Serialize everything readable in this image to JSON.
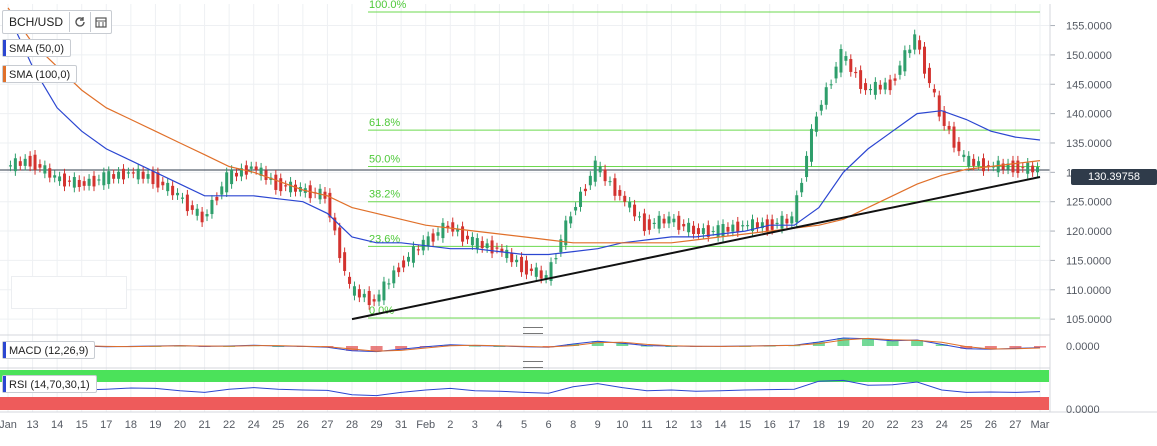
{
  "symbol": {
    "label": "BCH/USD"
  },
  "legends": {
    "sma50": {
      "label": "SMA (50,0)",
      "color": "#2b46d1"
    },
    "sma100": {
      "label": "SMA (100,0)",
      "color": "#e0702a"
    },
    "macd": {
      "label": "MACD (12,26,9)",
      "color": "#2b46d1"
    },
    "rsi": {
      "label": "RSI (14,70,30,1)",
      "color": "#2b46d1"
    }
  },
  "price_tag": {
    "value": "130.39758"
  },
  "fib_labels": {
    "f0": "0.0%",
    "f236": "23.6%",
    "f382": "38.2%",
    "f50": "50.0%",
    "f618": "61.8%",
    "f100": "100.0%"
  },
  "macd_label": "0.0000",
  "rsi_label": "0.0000",
  "x_ticks": [
    "Jan",
    "13",
    "14",
    "15",
    "17",
    "18",
    "19",
    "20",
    "21",
    "22",
    "24",
    "25",
    "26",
    "27",
    "28",
    "29",
    "31",
    "Feb",
    "2",
    "3",
    "4",
    "5",
    "6",
    "8",
    "9",
    "10",
    "11",
    "12",
    "13",
    "14",
    "15",
    "16",
    "17",
    "18",
    "19",
    "20",
    "22",
    "23",
    "24",
    "25",
    "26",
    "27",
    "Mar"
  ],
  "y_ticks": [
    "155.0000",
    "150.0000",
    "145.0000",
    "140.0000",
    "135.0000",
    "130.0000",
    "125.0000",
    "120.0000",
    "115.0000",
    "110.0000",
    "105.0000"
  ],
  "chart_data": {
    "type": "line",
    "title": "BCH/USD",
    "ylim": [
      104,
      158.5
    ],
    "grid": true,
    "x": [
      "Jan",
      "13",
      "14",
      "15",
      "17",
      "18",
      "19",
      "20",
      "21",
      "22",
      "24",
      "25",
      "26",
      "27",
      "28",
      "29",
      "31",
      "Feb",
      "2",
      "3",
      "4",
      "5",
      "6",
      "8",
      "9",
      "10",
      "11",
      "12",
      "13",
      "14",
      "15",
      "16",
      "17",
      "18",
      "19",
      "20",
      "22",
      "23",
      "24",
      "25",
      "26",
      "27",
      "Mar"
    ],
    "series": [
      {
        "name": "BCH/USD",
        "values": [
          131,
          132,
          129,
          128,
          129,
          130,
          129,
          126,
          122,
          129,
          131,
          128,
          127,
          126,
          110,
          108,
          114,
          118,
          121,
          118,
          117,
          114,
          112,
          123,
          131,
          126,
          121,
          122,
          120,
          120,
          121,
          121,
          122,
          140,
          150,
          144,
          145,
          153,
          140,
          132,
          131,
          131,
          130.4
        ]
      },
      {
        "name": "SMA (50,0)",
        "values": [
          157,
          148,
          141,
          137,
          134,
          132,
          130,
          128,
          126,
          126,
          126,
          125.5,
          125,
          123,
          119,
          118,
          118,
          117.5,
          117,
          117,
          116.5,
          116,
          116,
          116.5,
          117,
          118,
          118.5,
          119,
          119,
          119.5,
          120,
          121,
          121,
          124,
          130,
          134,
          137,
          140,
          140.5,
          139,
          137,
          136,
          135.5
        ]
      },
      {
        "name": "SMA (100,0)",
        "values": [
          158,
          152,
          148,
          144,
          141,
          139,
          137,
          135,
          133,
          131,
          130,
          128.5,
          127,
          126,
          124,
          123,
          122,
          121,
          120.5,
          120,
          119.5,
          119,
          118.5,
          118,
          118,
          118,
          118,
          118,
          118.5,
          119,
          119.5,
          120,
          120.5,
          121,
          122,
          124,
          126,
          128,
          129.5,
          130.5,
          131,
          131.5,
          132
        ]
      },
      {
        "name": "MACD (12,26,9)",
        "values": [
          0,
          0.2,
          0.1,
          0,
          -0.2,
          -0.1,
          0,
          0.1,
          -0.1,
          0,
          0.2,
          0,
          -0.1,
          -0.3,
          -1.2,
          -1.4,
          -0.8,
          -0.2,
          0.3,
          0.1,
          0,
          -0.2,
          -0.3,
          0.5,
          1.2,
          0.7,
          0.1,
          0,
          -0.1,
          -0.1,
          0,
          0.1,
          0.2,
          1.0,
          2.0,
          1.8,
          1.3,
          1.5,
          0.4,
          -0.7,
          -0.8,
          -0.6,
          -0.4
        ]
      },
      {
        "name": "RSI (14,70,30,1)",
        "values": [
          55,
          58,
          52,
          50,
          52,
          55,
          54,
          48,
          44,
          52,
          56,
          52,
          50,
          49,
          38,
          36,
          44,
          50,
          54,
          48,
          47,
          44,
          42,
          58,
          66,
          56,
          48,
          50,
          47,
          48,
          50,
          51,
          52,
          72,
          74,
          62,
          63,
          70,
          50,
          44,
          45,
          44,
          46
        ]
      }
    ],
    "fibonacci": {
      "levels": [
        "0.0%",
        "23.6%",
        "38.2%",
        "50.0%",
        "61.8%",
        "100.0%"
      ],
      "prices": [
        105.2,
        117.4,
        125,
        131,
        137.2,
        157.3
      ]
    },
    "trendline": {
      "from": [
        105,
        "28"
      ],
      "to": [
        129.2,
        "Mar"
      ]
    },
    "ylabel": "",
    "xlabel": ""
  },
  "colors": {
    "fib": "#6cd94f",
    "candle_up": "#2e9e6b",
    "candle_down": "#d3332f",
    "trend": "#111111",
    "rsi_over": "#4be25a",
    "rsi_under": "#ee5b5b"
  }
}
